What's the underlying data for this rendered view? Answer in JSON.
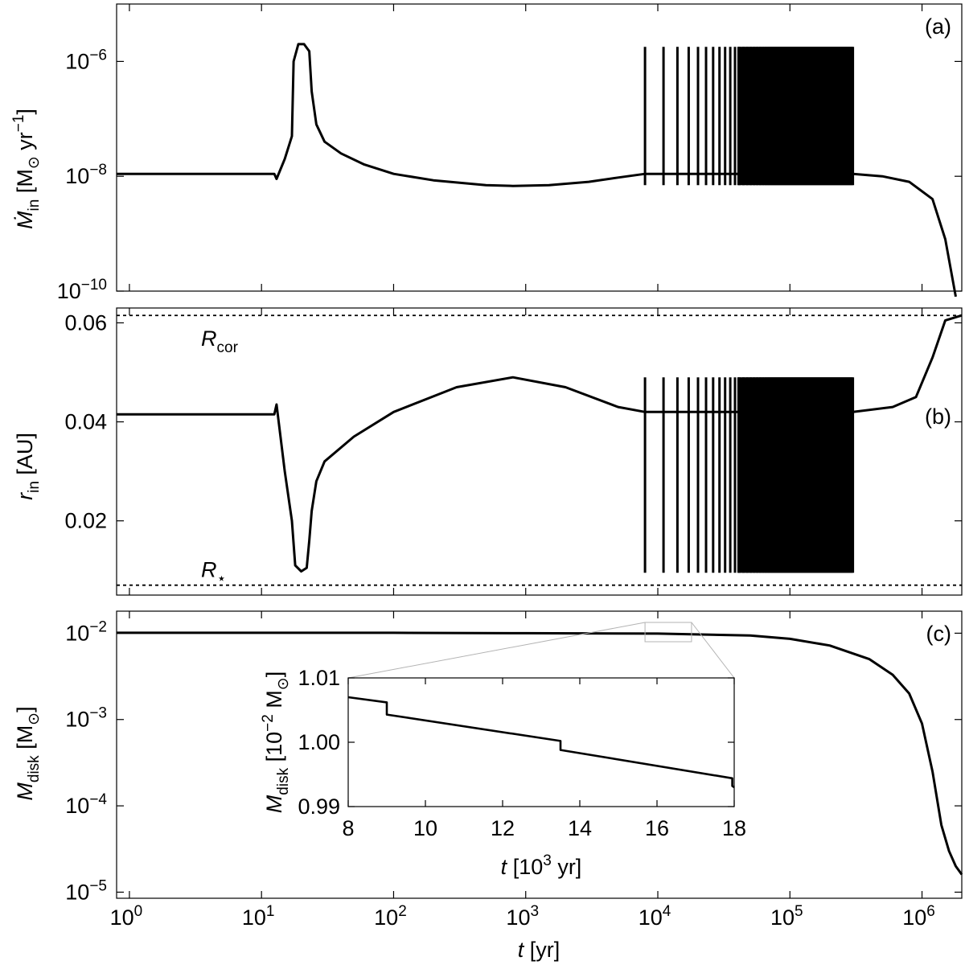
{
  "figure": {
    "x_axis": {
      "label": "t [yr]",
      "scale": "log",
      "range": [
        0.8,
        2000000
      ],
      "tick_values": [
        1,
        10,
        100,
        1000,
        10000,
        100000,
        1000000
      ],
      "tick_labels": [
        {
          "base": "10",
          "exp": "0"
        },
        {
          "base": "10",
          "exp": "1"
        },
        {
          "base": "10",
          "exp": "2"
        },
        {
          "base": "10",
          "exp": "3"
        },
        {
          "base": "10",
          "exp": "4"
        },
        {
          "base": "10",
          "exp": "5"
        },
        {
          "base": "10",
          "exp": "6"
        }
      ]
    },
    "panels": [
      {
        "tag": "(a)",
        "ylabel": "Ṁin [M⊙ yr−1]"
      },
      {
        "tag": "(b)",
        "ylabel": "rin [AU]"
      },
      {
        "tag": "(c)",
        "ylabel": "Mdisk [M⊙]"
      }
    ]
  },
  "chart_data": [
    {
      "type": "line",
      "panel": "a",
      "ylabel": "Ṁin [M⊙ yr−1]",
      "y_scale": "log",
      "ylim": [
        1e-10,
        1e-05
      ],
      "y_ticks": [
        {
          "base": "10",
          "exp": "−6",
          "value": 1e-06
        },
        {
          "base": "10",
          "exp": "−8",
          "value": 1e-08
        },
        {
          "base": "10",
          "exp": "−10",
          "value": 1e-10
        }
      ],
      "x": [
        0.8,
        12.5,
        13.0,
        15,
        17,
        17.5,
        19,
        21,
        23,
        24,
        26,
        30,
        40,
        60,
        100,
        200,
        500,
        800,
        1500,
        3000,
        5000,
        8000,
        300000,
        500000,
        800000,
        1200000,
        1500000,
        1800000
      ],
      "y": [
        1.1e-08,
        1.1e-08,
        9e-09,
        2e-08,
        5e-08,
        1e-06,
        2e-06,
        2e-06,
        1.5e-06,
        3e-07,
        8e-08,
        4e-08,
        2.5e-08,
        1.6e-08,
        1.1e-08,
        8.5e-09,
        7e-09,
        6.8e-09,
        7e-09,
        8e-09,
        9.5e-09,
        1.1e-08,
        1.1e-08,
        1e-08,
        8e-09,
        4e-09,
        8e-10,
        8e-11
      ],
      "oscillation": {
        "x_start": 8000,
        "x_end": 300000,
        "y_min": 7e-09,
        "y_max": 1.8e-06
      }
    },
    {
      "type": "line",
      "panel": "b",
      "ylabel": "rin [AU]",
      "ylim": [
        0.005,
        0.063
      ],
      "y_ticks": [
        {
          "label": "0.06",
          "value": 0.06
        },
        {
          "label": "0.04",
          "value": 0.04
        },
        {
          "label": "0.02",
          "value": 0.02
        }
      ],
      "reference_lines": [
        {
          "name": "Rcor",
          "label_base": "R",
          "label_sub": "cor",
          "value": 0.0615
        },
        {
          "name": "R★",
          "label_base": "R",
          "label_sub": "⋆",
          "value": 0.007
        }
      ],
      "x": [
        0.8,
        12.5,
        13.0,
        15,
        17,
        18,
        20,
        22,
        23,
        24,
        26,
        30,
        50,
        100,
        300,
        800,
        2000,
        5000,
        8000,
        300000,
        600000,
        900000,
        1200000,
        1500000,
        2000000
      ],
      "y": [
        0.0415,
        0.0415,
        0.0435,
        0.03,
        0.02,
        0.011,
        0.0098,
        0.0105,
        0.016,
        0.022,
        0.028,
        0.032,
        0.037,
        0.042,
        0.047,
        0.049,
        0.047,
        0.043,
        0.042,
        0.042,
        0.043,
        0.045,
        0.053,
        0.0605,
        0.0615
      ],
      "oscillation": {
        "x_start": 8000,
        "x_end": 300000,
        "y_min": 0.0095,
        "y_max": 0.049
      }
    },
    {
      "type": "line",
      "panel": "c",
      "ylabel": "Mdisk [M⊙]",
      "y_scale": "log",
      "ylim": [
        8.5e-06,
        0.018
      ],
      "y_ticks": [
        {
          "base": "10",
          "exp": "−2",
          "value": 0.01
        },
        {
          "base": "10",
          "exp": "−3",
          "value": 0.001
        },
        {
          "base": "10",
          "exp": "−4",
          "value": 0.0001
        },
        {
          "base": "10",
          "exp": "−5",
          "value": 1e-05
        }
      ],
      "x": [
        0.8,
        100,
        1000,
        10000,
        50000,
        100000,
        200000,
        400000,
        600000,
        800000,
        1000000,
        1200000,
        1400000,
        1600000,
        1800000,
        2000000
      ],
      "y": [
        0.0101,
        0.0101,
        0.01,
        0.0099,
        0.0094,
        0.0086,
        0.0072,
        0.005,
        0.0033,
        0.002,
        0.0009,
        0.00025,
        6e-05,
        3e-05,
        2e-05,
        1.6e-05
      ],
      "inset": {
        "xlabel": "t [10³ yr]",
        "ylabel": "Mdisk [10−2 M⊙]",
        "xlim": [
          8,
          18
        ],
        "ylim": [
          0.99,
          1.01
        ],
        "x_ticks": [
          "8",
          "10",
          "12",
          "14",
          "16",
          "18"
        ],
        "y_ticks": [
          "1.01",
          "1.00",
          "0.99"
        ],
        "x": [
          8,
          9.0,
          9.0,
          13.5,
          13.5,
          17.95,
          17.95,
          18
        ],
        "y": [
          1.007,
          1.0062,
          1.0043,
          1.0002,
          0.9988,
          0.9944,
          0.9932,
          0.993
        ]
      }
    }
  ]
}
